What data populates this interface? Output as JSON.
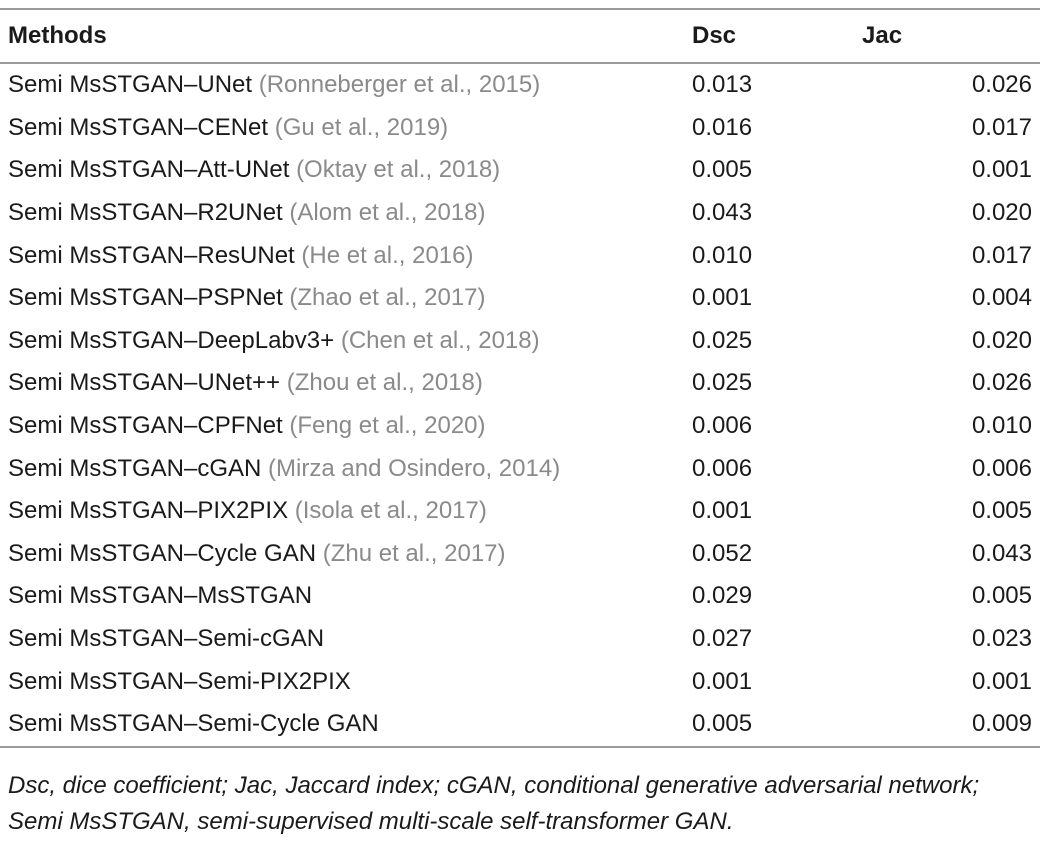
{
  "table": {
    "headers": {
      "method": "Methods",
      "dsc": "Dsc",
      "jac": "Jac"
    },
    "rows": [
      {
        "method": "Semi MsSTGAN–UNet",
        "cite": "(Ronneberger et al., 2015)",
        "dsc": "0.013",
        "jac": "0.026"
      },
      {
        "method": "Semi MsSTGAN–CENet",
        "cite": "(Gu et al., 2019)",
        "dsc": "0.016",
        "jac": "0.017"
      },
      {
        "method": "Semi MsSTGAN–Att-UNet",
        "cite": "(Oktay et al., 2018)",
        "dsc": "0.005",
        "jac": "0.001"
      },
      {
        "method": "Semi MsSTGAN–R2UNet",
        "cite": "(Alom et al., 2018)",
        "dsc": "0.043",
        "jac": "0.020"
      },
      {
        "method": "Semi MsSTGAN–ResUNet",
        "cite": "(He et al., 2016)",
        "dsc": "0.010",
        "jac": "0.017"
      },
      {
        "method": "Semi MsSTGAN–PSPNet",
        "cite": "(Zhao et al., 2017)",
        "dsc": "0.001",
        "jac": "0.004"
      },
      {
        "method": "Semi MsSTGAN–DeepLabv3+",
        "cite": "(Chen et al., 2018)",
        "dsc": "0.025",
        "jac": "0.020"
      },
      {
        "method": "Semi MsSTGAN–UNet++",
        "cite": "(Zhou et al., 2018)",
        "dsc": "0.025",
        "jac": "0.026"
      },
      {
        "method": "Semi MsSTGAN–CPFNet",
        "cite": "(Feng et al., 2020)",
        "dsc": "0.006",
        "jac": "0.010"
      },
      {
        "method": "Semi MsSTGAN–cGAN",
        "cite": "(Mirza and Osindero, 2014)",
        "dsc": "0.006",
        "jac": "0.006"
      },
      {
        "method": "Semi MsSTGAN–PIX2PIX",
        "cite": "(Isola et al., 2017)",
        "dsc": "0.001",
        "jac": "0.005"
      },
      {
        "method": "Semi MsSTGAN–Cycle GAN",
        "cite": "(Zhu et al., 2017)",
        "dsc": "0.052",
        "jac": "0.043"
      },
      {
        "method": "Semi MsSTGAN–MsSTGAN",
        "cite": "",
        "dsc": "0.029",
        "jac": "0.005"
      },
      {
        "method": "Semi MsSTGAN–Semi-cGAN",
        "cite": "",
        "dsc": "0.027",
        "jac": "0.023"
      },
      {
        "method": "Semi MsSTGAN–Semi-PIX2PIX",
        "cite": "",
        "dsc": "0.001",
        "jac": "0.001"
      },
      {
        "method": "Semi MsSTGAN–Semi-Cycle GAN",
        "cite": "",
        "dsc": "0.005",
        "jac": "0.009"
      }
    ]
  },
  "footnote": "Dsc, dice coefficient; Jac, Jaccard index; cGAN, conditional generative adversarial network; Semi MsSTGAN, semi-supervised multi-scale self-transformer GAN."
}
